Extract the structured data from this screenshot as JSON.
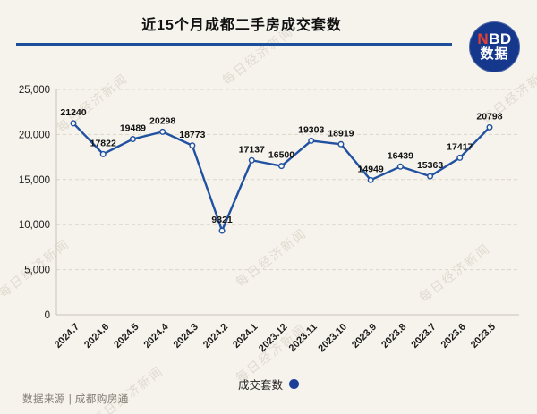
{
  "header": {
    "title": "近15个月成都二手房成交套数"
  },
  "logo": {
    "top_red": "N",
    "top_white": "BD",
    "bottom": "数据"
  },
  "watermark": {
    "text": "每日经济新闻"
  },
  "footer": {
    "source": "数据来源 | 成都购房通"
  },
  "colors": {
    "background": "#f6f3ec",
    "accent_blue": "#1b4e9b",
    "line_blue": "#2151a1",
    "legend_dot": "#1b3f97",
    "logo_bg": "#16388c",
    "logo_red": "#e8402f"
  },
  "chart_data": {
    "type": "line",
    "title": "近15个月成都二手房成交套数",
    "series_name": "成交套数",
    "categories": [
      "2024.7",
      "2024.6",
      "2024.5",
      "2024.4",
      "2024.3",
      "2024.2",
      "2024.1",
      "2023.12",
      "2023.11",
      "2023.10",
      "2023.9",
      "2023.8",
      "2023.7",
      "2023.6",
      "2023.5"
    ],
    "values": [
      21240,
      17822,
      19489,
      20298,
      18773,
      9321,
      17137,
      16500,
      19303,
      18919,
      14949,
      16439,
      15363,
      17417,
      20798
    ],
    "ylim": [
      0,
      25000
    ],
    "ytick_interval": 5000,
    "ytick_labels": [
      "0",
      "5,000",
      "10,000",
      "15,000",
      "20,000",
      "25,000"
    ],
    "grid": true,
    "legend_position": "bottom",
    "line_color": "#2151a1",
    "marker": "circle-open"
  }
}
